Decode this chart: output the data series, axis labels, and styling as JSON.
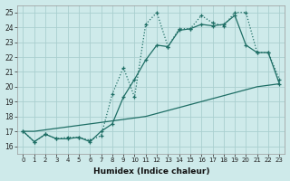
{
  "xlabel": "Humidex (Indice chaleur)",
  "background_color": "#ceeaea",
  "grid_color": "#aacfcf",
  "line_color": "#1e6e65",
  "xlim": [
    -0.5,
    23.5
  ],
  "ylim": [
    15.5,
    25.5
  ],
  "xticks": [
    0,
    1,
    2,
    3,
    4,
    5,
    6,
    7,
    8,
    9,
    10,
    11,
    12,
    13,
    14,
    15,
    16,
    17,
    18,
    19,
    20,
    21,
    22,
    23
  ],
  "yticks": [
    16,
    17,
    18,
    19,
    20,
    21,
    22,
    23,
    24,
    25
  ],
  "line1_x": [
    0,
    1,
    2,
    3,
    4,
    5,
    6,
    7,
    8,
    9,
    10,
    11,
    12,
    13,
    14,
    15,
    16,
    17,
    18,
    19,
    20,
    21,
    22,
    23
  ],
  "line1_y": [
    17.0,
    16.3,
    16.8,
    16.5,
    16.6,
    16.6,
    16.4,
    16.7,
    19.5,
    21.3,
    19.3,
    24.2,
    25.0,
    22.7,
    23.9,
    23.9,
    24.8,
    24.3,
    24.1,
    25.0,
    25.0,
    22.3,
    22.3,
    20.5
  ],
  "line2_x": [
    0,
    1,
    2,
    3,
    4,
    5,
    6,
    7,
    8,
    9,
    10,
    11,
    12,
    13,
    14,
    15,
    16,
    17,
    18,
    19,
    20,
    21,
    22,
    23
  ],
  "line2_y": [
    17.0,
    16.3,
    16.8,
    16.5,
    16.5,
    16.6,
    16.3,
    17.0,
    17.5,
    19.3,
    20.5,
    21.8,
    22.8,
    22.7,
    23.8,
    23.9,
    24.2,
    24.1,
    24.2,
    24.8,
    22.8,
    22.3,
    22.3,
    20.2
  ],
  "line3_x": [
    0,
    1,
    2,
    3,
    4,
    5,
    6,
    7,
    8,
    9,
    10,
    11,
    12,
    13,
    14,
    15,
    16,
    17,
    18,
    19,
    20,
    21,
    22,
    23
  ],
  "line3_y": [
    17.0,
    17.0,
    17.1,
    17.2,
    17.3,
    17.4,
    17.5,
    17.6,
    17.7,
    17.8,
    17.9,
    18.0,
    18.2,
    18.4,
    18.6,
    18.8,
    19.0,
    19.2,
    19.4,
    19.6,
    19.8,
    20.0,
    20.1,
    20.2
  ]
}
